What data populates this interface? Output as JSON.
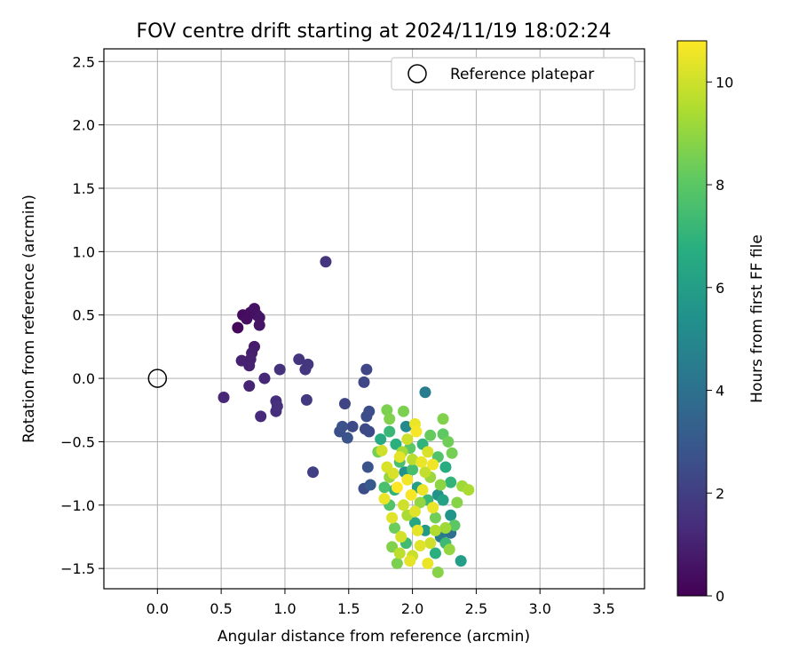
{
  "chart_data": {
    "type": "scatter",
    "title": "FOV centre drift starting at 2024/11/19 18:02:24",
    "xlabel": "Angular distance from reference (arcmin)",
    "ylabel": "Rotation from reference (arcmin)",
    "xlim": [
      -0.42,
      3.82
    ],
    "ylim": [
      -1.66,
      2.6
    ],
    "xticks": [
      "0.0",
      "0.5",
      "1.0",
      "1.5",
      "2.0",
      "2.5",
      "3.0",
      "3.5"
    ],
    "yticks": [
      "2.5",
      "2.0",
      "1.5",
      "1.0",
      "0.5",
      "0.0",
      "−0.5",
      "−1.0",
      "−1.5"
    ],
    "grid": true,
    "legend": {
      "position": "top-right",
      "entries": [
        "Reference platepar"
      ]
    },
    "colorbar": {
      "label": "Hours from first FF file",
      "colormap": "viridis",
      "range": [
        0,
        10.8
      ],
      "ticks": [
        "0",
        "2",
        "4",
        "6",
        "8",
        "10"
      ]
    },
    "reference_point": {
      "x": 0.0,
      "y": 0.0
    },
    "points": [
      {
        "x": 0.63,
        "y": 0.4,
        "c": 0.2
      },
      {
        "x": 0.67,
        "y": 0.5,
        "c": 0.3
      },
      {
        "x": 0.7,
        "y": 0.47,
        "c": 0.4
      },
      {
        "x": 0.73,
        "y": 0.52,
        "c": 0.4
      },
      {
        "x": 0.76,
        "y": 0.55,
        "c": 0.5
      },
      {
        "x": 0.78,
        "y": 0.5,
        "c": 0.5
      },
      {
        "x": 0.8,
        "y": 0.48,
        "c": 0.6
      },
      {
        "x": 0.8,
        "y": 0.42,
        "c": 0.6
      },
      {
        "x": 0.76,
        "y": 0.25,
        "c": 0.8
      },
      {
        "x": 0.74,
        "y": 0.2,
        "c": 0.9
      },
      {
        "x": 0.73,
        "y": 0.15,
        "c": 1.0
      },
      {
        "x": 0.66,
        "y": 0.14,
        "c": 1.0
      },
      {
        "x": 0.72,
        "y": 0.1,
        "c": 1.0
      },
      {
        "x": 0.52,
        "y": -0.15,
        "c": 1.2
      },
      {
        "x": 0.72,
        "y": -0.06,
        "c": 1.1
      },
      {
        "x": 0.84,
        "y": 0.0,
        "c": 1.2
      },
      {
        "x": 0.81,
        "y": -0.3,
        "c": 1.3
      },
      {
        "x": 0.93,
        "y": -0.18,
        "c": 1.4
      },
      {
        "x": 0.93,
        "y": -0.26,
        "c": 1.4
      },
      {
        "x": 0.94,
        "y": -0.22,
        "c": 1.5
      },
      {
        "x": 0.96,
        "y": 0.07,
        "c": 1.5
      },
      {
        "x": 1.11,
        "y": 0.15,
        "c": 1.6
      },
      {
        "x": 1.16,
        "y": 0.07,
        "c": 1.7
      },
      {
        "x": 1.18,
        "y": 0.11,
        "c": 1.7
      },
      {
        "x": 1.17,
        "y": -0.17,
        "c": 1.8
      },
      {
        "x": 1.32,
        "y": 0.92,
        "c": 1.6
      },
      {
        "x": 1.22,
        "y": -0.74,
        "c": 2.0
      },
      {
        "x": 1.43,
        "y": -0.42,
        "c": 2.6
      },
      {
        "x": 1.45,
        "y": -0.38,
        "c": 2.7
      },
      {
        "x": 1.47,
        "y": -0.2,
        "c": 2.2
      },
      {
        "x": 1.49,
        "y": -0.47,
        "c": 2.8
      },
      {
        "x": 1.53,
        "y": -0.38,
        "c": 2.4
      },
      {
        "x": 1.62,
        "y": -0.03,
        "c": 2.3
      },
      {
        "x": 1.64,
        "y": 0.07,
        "c": 2.3
      },
      {
        "x": 1.64,
        "y": -0.3,
        "c": 2.5
      },
      {
        "x": 1.66,
        "y": -0.26,
        "c": 2.5
      },
      {
        "x": 1.63,
        "y": -0.4,
        "c": 2.4
      },
      {
        "x": 1.66,
        "y": -0.42,
        "c": 2.4
      },
      {
        "x": 1.62,
        "y": -0.87,
        "c": 2.5
      },
      {
        "x": 1.65,
        "y": -0.7,
        "c": 2.8
      },
      {
        "x": 1.67,
        "y": -0.84,
        "c": 3.0
      },
      {
        "x": 2.1,
        "y": -0.11,
        "c": 4.5
      },
      {
        "x": 2.38,
        "y": -1.44,
        "c": 6.0
      },
      {
        "x": 2.22,
        "y": -1.25,
        "c": 4.5
      },
      {
        "x": 2.3,
        "y": -1.22,
        "c": 4.0
      },
      {
        "x": 1.95,
        "y": -0.38,
        "c": 5.0
      },
      {
        "x": 2.2,
        "y": -0.92,
        "c": 5.5
      },
      {
        "x": 1.73,
        "y": -0.58,
        "c": 8.5
      },
      {
        "x": 1.8,
        "y": -0.25,
        "c": 8.6
      },
      {
        "x": 1.82,
        "y": -0.32,
        "c": 8.7
      },
      {
        "x": 1.93,
        "y": -0.26,
        "c": 8.6
      },
      {
        "x": 2.24,
        "y": -0.32,
        "c": 8.7
      },
      {
        "x": 2.28,
        "y": -0.5,
        "c": 8.4
      },
      {
        "x": 2.31,
        "y": -0.59,
        "c": 8.5
      },
      {
        "x": 2.39,
        "y": -0.85,
        "c": 9.2
      },
      {
        "x": 2.44,
        "y": -0.88,
        "c": 9.4
      },
      {
        "x": 2.29,
        "y": -1.35,
        "c": 9.0
      },
      {
        "x": 2.2,
        "y": -1.53,
        "c": 8.8
      },
      {
        "x": 1.88,
        "y": -1.46,
        "c": 8.6
      },
      {
        "x": 1.84,
        "y": -1.33,
        "c": 8.7
      },
      {
        "x": 1.78,
        "y": -0.95,
        "c": 10.5
      },
      {
        "x": 1.8,
        "y": -0.7,
        "c": 10.2
      },
      {
        "x": 1.9,
        "y": -0.62,
        "c": 10.4
      },
      {
        "x": 1.96,
        "y": -0.48,
        "c": 10.0
      },
      {
        "x": 2.02,
        "y": -0.36,
        "c": 10.5
      },
      {
        "x": 2.03,
        "y": -0.42,
        "c": 10.7
      },
      {
        "x": 2.07,
        "y": -0.66,
        "c": 10.5
      },
      {
        "x": 2.16,
        "y": -0.68,
        "c": 10.6
      },
      {
        "x": 2.12,
        "y": -1.46,
        "c": 10.5
      },
      {
        "x": 1.98,
        "y": -1.44,
        "c": 10.4
      },
      {
        "x": 2.14,
        "y": -1.3,
        "c": 10.0
      },
      {
        "x": 1.84,
        "y": -1.1,
        "c": 10.3
      },
      {
        "x": 1.76,
        "y": -0.57,
        "c": 10.0
      },
      {
        "x": 1.85,
        "y": -0.75,
        "c": 10.2
      },
      {
        "x": 1.93,
        "y": -1.0,
        "c": 10.0
      },
      {
        "x": 2.02,
        "y": -1.05,
        "c": 10.3
      },
      {
        "x": 2.08,
        "y": -0.88,
        "c": 10.5
      },
      {
        "x": 1.96,
        "y": -0.8,
        "c": 10.6
      },
      {
        "x": 2.04,
        "y": -1.2,
        "c": 10.4
      },
      {
        "x": 1.99,
        "y": -0.92,
        "c": 10.7
      },
      {
        "x": 1.91,
        "y": -1.25,
        "c": 10.1
      },
      {
        "x": 2.12,
        "y": -0.58,
        "c": 10.2
      },
      {
        "x": 2.16,
        "y": -1.02,
        "c": 10.5
      },
      {
        "x": 1.88,
        "y": -0.86,
        "c": 10.8
      },
      {
        "x": 2.06,
        "y": -1.32,
        "c": 10.3
      },
      {
        "x": 1.75,
        "y": -0.48,
        "c": 6.5
      },
      {
        "x": 1.82,
        "y": -0.42,
        "c": 7.2
      },
      {
        "x": 1.87,
        "y": -0.52,
        "c": 6.8
      },
      {
        "x": 1.9,
        "y": -0.66,
        "c": 7.6
      },
      {
        "x": 1.98,
        "y": -0.55,
        "c": 8.0
      },
      {
        "x": 2.0,
        "y": -0.72,
        "c": 7.5
      },
      {
        "x": 2.08,
        "y": -0.52,
        "c": 7.0
      },
      {
        "x": 2.14,
        "y": -0.45,
        "c": 8.2
      },
      {
        "x": 2.2,
        "y": -0.62,
        "c": 7.8
      },
      {
        "x": 2.26,
        "y": -0.7,
        "c": 6.6
      },
      {
        "x": 2.3,
        "y": -0.82,
        "c": 7.0
      },
      {
        "x": 2.24,
        "y": -0.96,
        "c": 6.2
      },
      {
        "x": 2.3,
        "y": -1.08,
        "c": 5.6
      },
      {
        "x": 2.33,
        "y": -1.16,
        "c": 8.0
      },
      {
        "x": 2.26,
        "y": -1.3,
        "c": 7.3
      },
      {
        "x": 2.18,
        "y": -1.38,
        "c": 6.8
      },
      {
        "x": 2.1,
        "y": -1.2,
        "c": 5.8
      },
      {
        "x": 2.02,
        "y": -1.14,
        "c": 6.4
      },
      {
        "x": 1.95,
        "y": -1.3,
        "c": 7.4
      },
      {
        "x": 1.86,
        "y": -1.18,
        "c": 8.3
      },
      {
        "x": 1.82,
        "y": -1.0,
        "c": 7.8
      },
      {
        "x": 1.86,
        "y": -0.88,
        "c": 6.9
      },
      {
        "x": 1.94,
        "y": -0.74,
        "c": 5.4
      },
      {
        "x": 2.04,
        "y": -0.86,
        "c": 6.0
      },
      {
        "x": 2.12,
        "y": -0.96,
        "c": 7.2
      },
      {
        "x": 2.18,
        "y": -1.1,
        "c": 8.4
      },
      {
        "x": 2.06,
        "y": -0.98,
        "c": 9.0
      },
      {
        "x": 1.96,
        "y": -1.08,
        "c": 9.4
      },
      {
        "x": 2.14,
        "y": -0.78,
        "c": 9.1
      },
      {
        "x": 2.22,
        "y": -0.84,
        "c": 8.9
      },
      {
        "x": 1.92,
        "y": -0.58,
        "c": 9.3
      },
      {
        "x": 2.0,
        "y": -0.64,
        "c": 9.6
      },
      {
        "x": 2.1,
        "y": -0.74,
        "c": 9.8
      },
      {
        "x": 2.18,
        "y": -1.2,
        "c": 9.5
      },
      {
        "x": 2.26,
        "y": -1.18,
        "c": 9.2
      },
      {
        "x": 1.9,
        "y": -1.38,
        "c": 9.7
      },
      {
        "x": 2.0,
        "y": -1.4,
        "c": 9.9
      },
      {
        "x": 1.82,
        "y": -0.78,
        "c": 9.0
      },
      {
        "x": 2.35,
        "y": -0.98,
        "c": 8.8
      },
      {
        "x": 1.78,
        "y": -0.86,
        "c": 7.6
      },
      {
        "x": 2.24,
        "y": -0.44,
        "c": 8.1
      }
    ]
  }
}
